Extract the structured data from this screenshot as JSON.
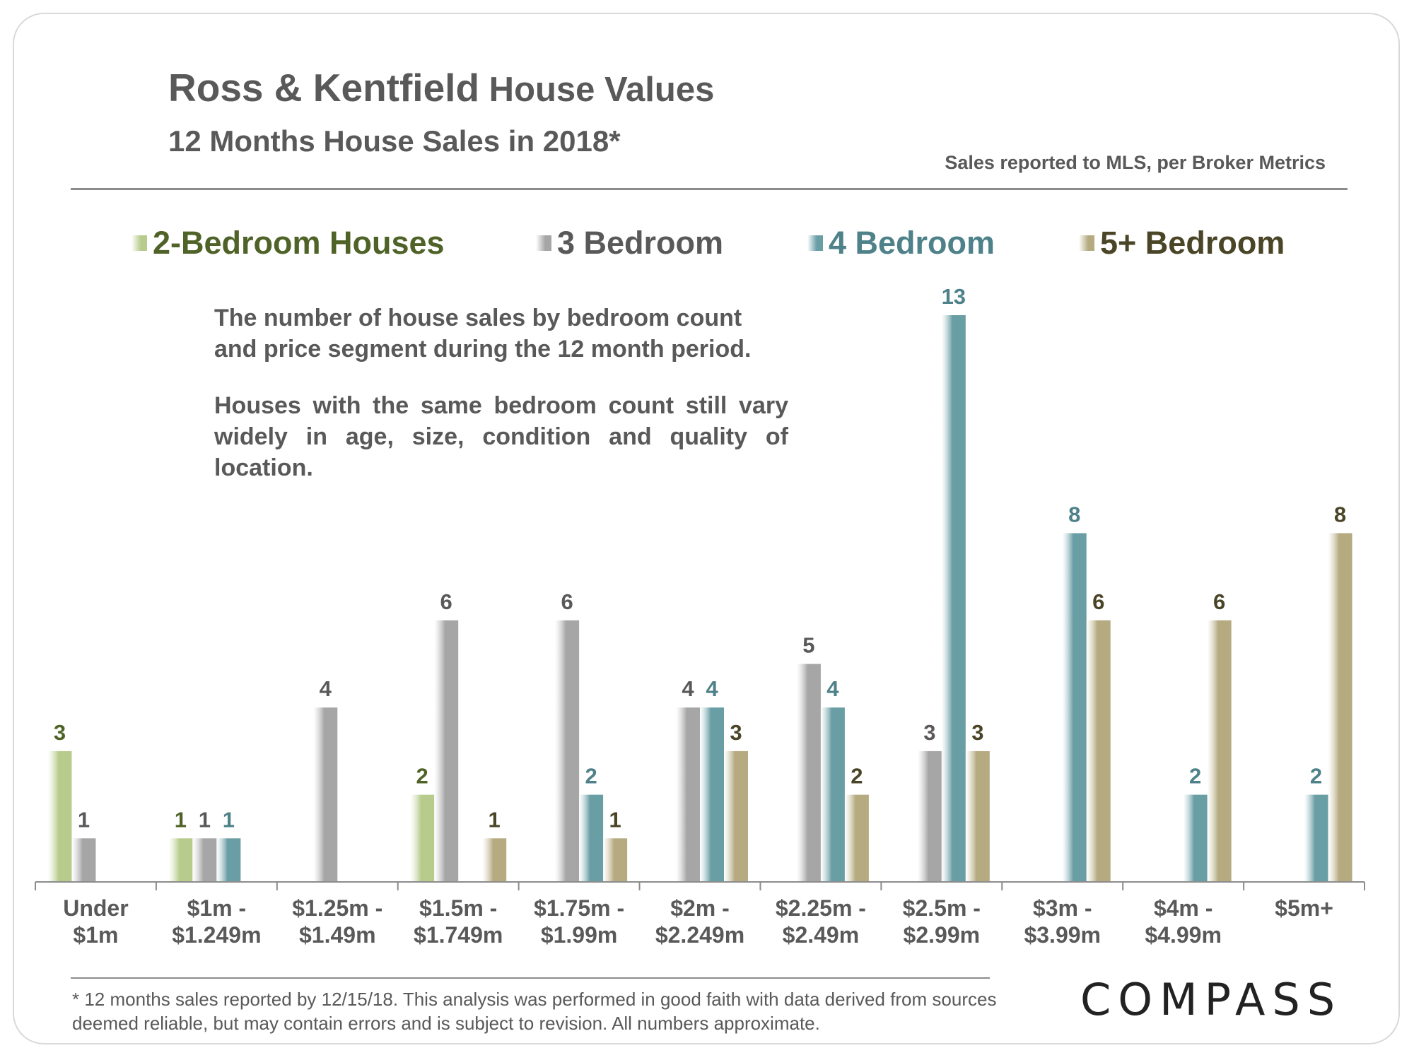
{
  "header": {
    "title_main": "Ross & Kentfield",
    "title_rest": " House Values",
    "subtitle": "12 Months House Sales in 2018*",
    "source": "Sales reported to MLS, per Broker Metrics"
  },
  "notes": {
    "para1": "The number of house sales by bedroom count and price segment during the 12 month period.",
    "para2": "Houses with the same bedroom count still vary widely in age, size, condition and quality of location."
  },
  "footer": {
    "footnote": "* 12 months sales reported by 12/15/18. This analysis was performed in good faith with data derived from sources deemed reliable, but may contain errors and is subject to revision. All numbers approximate.",
    "logo": "COMPASS"
  },
  "colors": {
    "two_bed": "#b7cc8c",
    "three_bed": "#a6a6a6",
    "four_bed": "#6a9ea5",
    "five_bed": "#b5aa80",
    "two_bed_label": "#4f6228",
    "three_bed_label": "#595959",
    "four_bed_label": "#4e8189",
    "five_bed_label": "#4a4527"
  },
  "chart_data": {
    "type": "bar",
    "title": "Ross & Kentfield House Values",
    "subtitle": "12 Months House Sales in 2018*",
    "xlabel": "",
    "ylabel": "",
    "ylim": [
      0,
      13
    ],
    "grid": false,
    "legend_position": "top",
    "categories": [
      [
        "Under",
        "$1m"
      ],
      [
        "$1m -",
        "$1.249m"
      ],
      [
        "$1.25m -",
        "$1.49m"
      ],
      [
        "$1.5m -",
        "$1.749m"
      ],
      [
        "$1.75m -",
        "$1.99m"
      ],
      [
        "$2m -",
        "$2.249m"
      ],
      [
        "$2.25m -",
        "$2.49m"
      ],
      [
        "$2.5m -",
        "$2.99m"
      ],
      [
        "$3m -",
        "$3.99m"
      ],
      [
        "$4m -",
        "$4.99m"
      ],
      [
        "$5m+",
        ""
      ]
    ],
    "series": [
      {
        "name": "2-Bedroom Houses",
        "key": "two_bed",
        "values": [
          3,
          1,
          null,
          2,
          null,
          null,
          null,
          null,
          null,
          null,
          null
        ]
      },
      {
        "name": "3 Bedroom",
        "key": "three_bed",
        "values": [
          1,
          1,
          4,
          6,
          6,
          4,
          5,
          3,
          null,
          null,
          null
        ]
      },
      {
        "name": "4 Bedroom",
        "key": "four_bed",
        "values": [
          null,
          1,
          null,
          null,
          2,
          4,
          4,
          13,
          8,
          2,
          2
        ]
      },
      {
        "name": "5+ Bedroom",
        "key": "five_bed",
        "values": [
          null,
          null,
          null,
          1,
          1,
          3,
          2,
          3,
          6,
          6,
          8
        ]
      }
    ]
  }
}
